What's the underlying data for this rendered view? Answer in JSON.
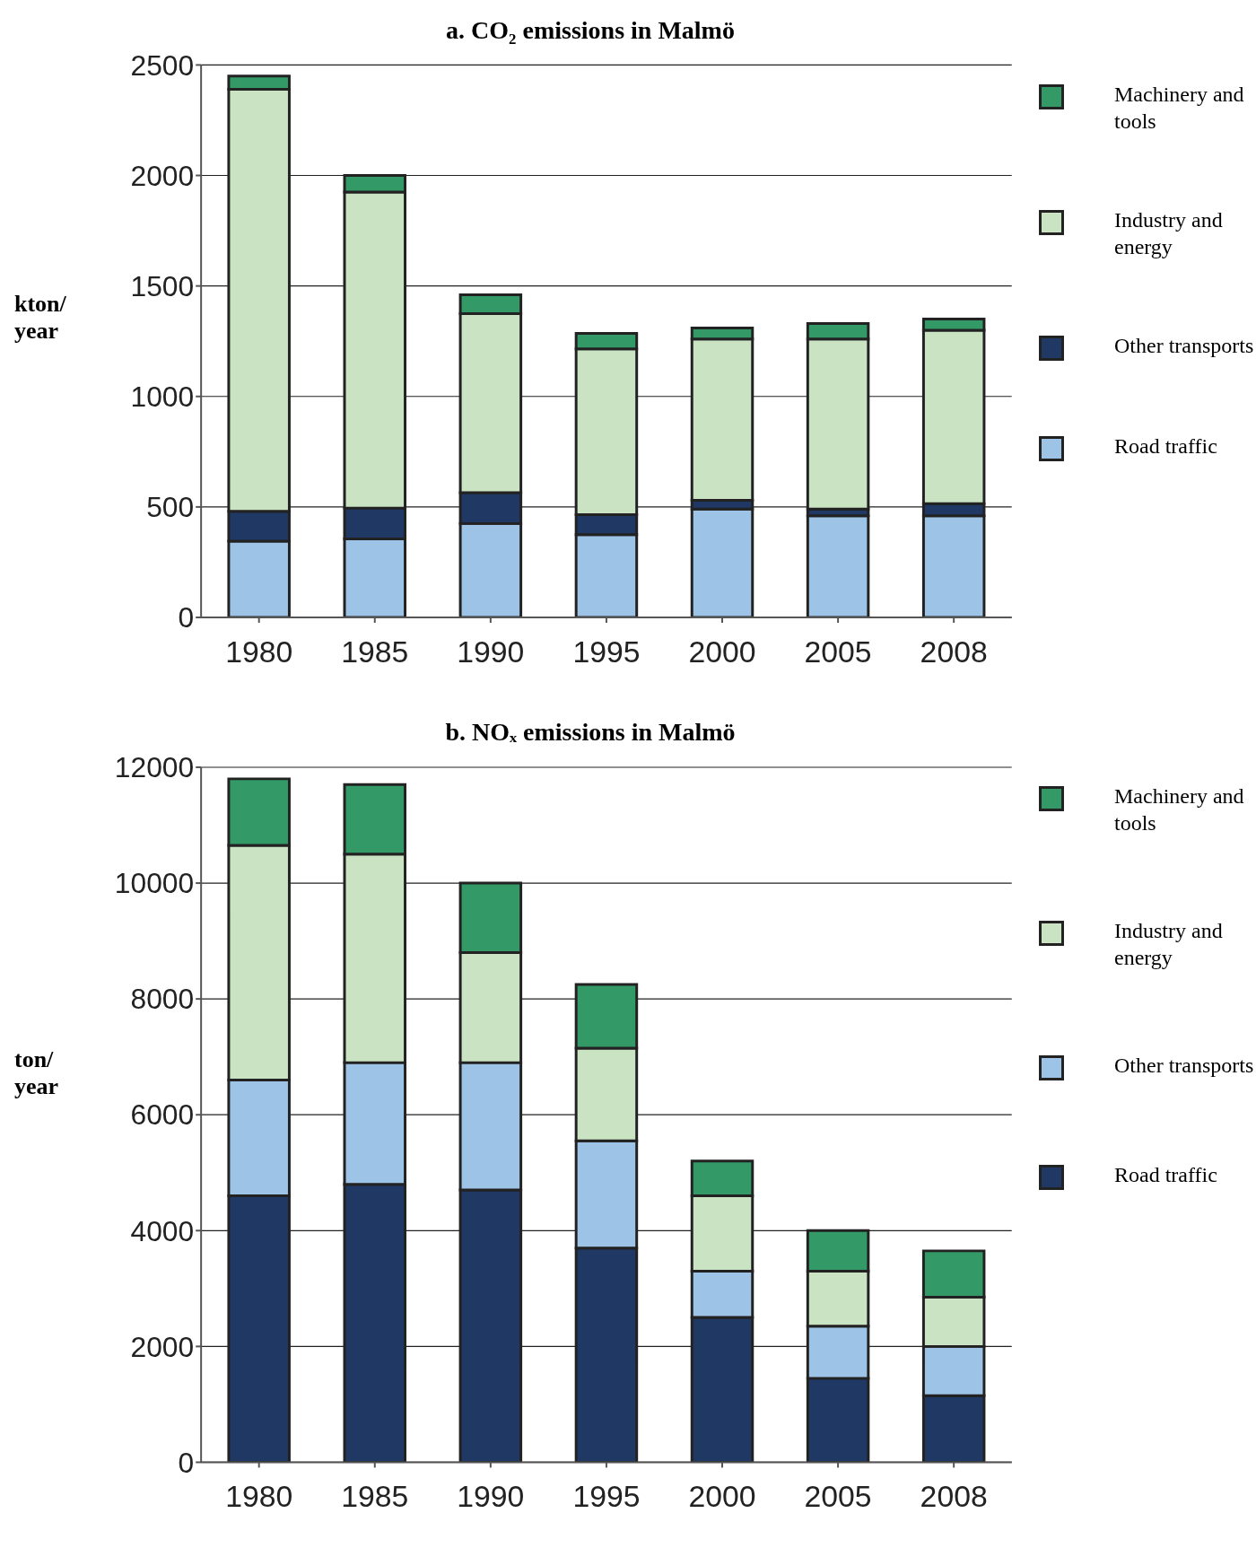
{
  "chart_data": [
    {
      "type": "bar",
      "title": "a. CO₂ emissions in Malmö",
      "ylabel": "kton/ year",
      "stacked": true,
      "grid": "y",
      "legend": "right",
      "categories": [
        "1980",
        "1985",
        "1990",
        "1995",
        "2000",
        "2005",
        "2008"
      ],
      "ylim": [
        0,
        2500
      ],
      "yticks": [
        0,
        500,
        1000,
        1500,
        2000,
        2500
      ],
      "series": [
        {
          "name": "Road traffic",
          "color": "#9dc3e6",
          "values": [
            345,
            355,
            425,
            375,
            490,
            460,
            460
          ]
        },
        {
          "name": "Other transports",
          "color": "#1f3864",
          "values": [
            135,
            140,
            140,
            90,
            40,
            30,
            55
          ]
        },
        {
          "name": "Industry and energy",
          "color": "#c9e3c3",
          "values": [
            1910,
            1430,
            810,
            750,
            730,
            770,
            785
          ]
        },
        {
          "name": "Machinery and tools",
          "color": "#339966",
          "values": [
            60,
            75,
            85,
            70,
            50,
            70,
            50
          ]
        }
      ]
    },
    {
      "type": "bar",
      "title": "b. NOₓ emissions in Malmö",
      "ylabel": "ton/ year",
      "stacked": true,
      "grid": "y",
      "legend": "right",
      "categories": [
        "1980",
        "1985",
        "1990",
        "1995",
        "2000",
        "2005",
        "2008"
      ],
      "ylim": [
        0,
        12000
      ],
      "yticks": [
        0,
        2000,
        4000,
        6000,
        8000,
        10000,
        12000
      ],
      "series": [
        {
          "name": "Road traffic",
          "color": "#1f3864",
          "values": [
            4600,
            4800,
            4700,
            3700,
            2500,
            1450,
            1150
          ]
        },
        {
          "name": "Other transports",
          "color": "#9dc3e6",
          "values": [
            2000,
            2100,
            2200,
            1850,
            800,
            900,
            850
          ]
        },
        {
          "name": "Industry and energy",
          "color": "#c9e3c3",
          "values": [
            4050,
            3600,
            1900,
            1600,
            1300,
            950,
            850
          ]
        },
        {
          "name": "Machinery and tools",
          "color": "#339966",
          "values": [
            1150,
            1200,
            1200,
            1100,
            600,
            700,
            800
          ]
        }
      ]
    }
  ]
}
